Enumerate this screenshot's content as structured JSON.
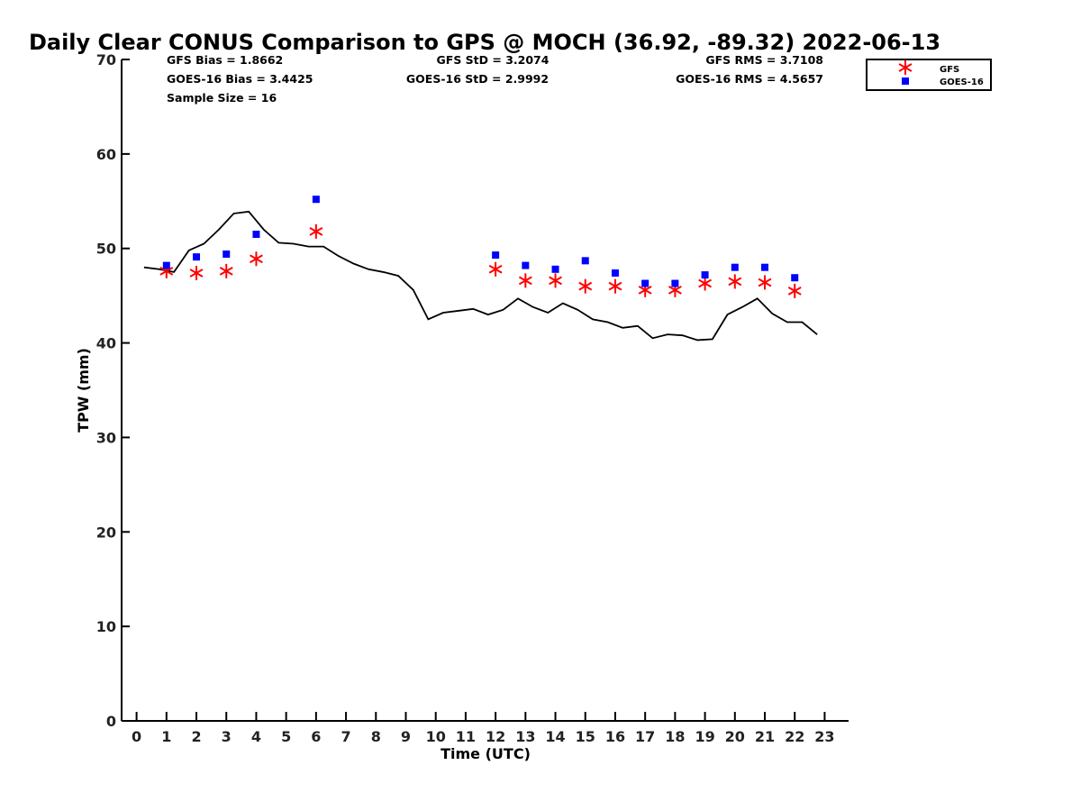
{
  "chart_data": {
    "type": "line",
    "title": "Daily Clear CONUS Comparison to GPS @ MOCH (36.92, -89.32) 2022-06-13",
    "xlabel": "Time (UTC)",
    "ylabel": "TPW (mm)",
    "xlim": [
      -0.5,
      23.8
    ],
    "ylim": [
      0,
      70
    ],
    "xticks": [
      "0",
      "1",
      "2",
      "3",
      "4",
      "5",
      "6",
      "7",
      "8",
      "9",
      "10",
      "11",
      "12",
      "13",
      "14",
      "15",
      "16",
      "17",
      "18",
      "19",
      "20",
      "21",
      "22",
      "23"
    ],
    "yticks": [
      "0",
      "10",
      "20",
      "30",
      "40",
      "50",
      "60",
      "70"
    ],
    "grid": false,
    "legend_position": "top-right",
    "stats": {
      "gfs_bias": "GFS Bias = 1.8662",
      "goes_bias": "GOES-16 Bias = 3.4425",
      "sample_size": "Sample Size = 16",
      "gfs_std": "GFS StD = 3.2074",
      "goes_std": "GOES-16 StD = 2.9992",
      "gfs_rms": "GFS RMS = 3.7108",
      "goes_rms": "GOES-16 RMS = 4.5657"
    },
    "series": [
      {
        "kind": "line",
        "color": "#000000",
        "x": [
          0.25,
          0.75,
          1.25,
          1.75,
          2.25,
          2.75,
          3.25,
          3.75,
          4.25,
          4.75,
          5.25,
          5.75,
          6.25,
          6.75,
          7.25,
          7.75,
          8.25,
          8.75,
          9.25,
          9.75,
          10.25,
          10.75,
          11.25,
          11.75,
          12.25,
          12.75,
          13.25,
          13.75,
          14.25,
          14.75,
          15.25,
          15.75,
          16.25,
          16.75,
          17.25,
          17.75,
          18.25,
          18.75,
          19.25,
          19.75,
          20.25,
          20.75,
          21.25,
          21.75,
          22.25,
          22.75
        ],
        "y": [
          48.0,
          47.8,
          47.5,
          49.8,
          50.5,
          52.0,
          53.7,
          53.9,
          52.0,
          50.6,
          50.5,
          50.2,
          50.2,
          49.2,
          48.4,
          47.8,
          47.5,
          47.1,
          45.6,
          42.5,
          43.2,
          43.4,
          43.6,
          43.0,
          43.5,
          44.7,
          43.8,
          43.2,
          44.2,
          43.5,
          42.5,
          42.2,
          41.6,
          41.8,
          40.5,
          40.9,
          40.8,
          40.3,
          40.4,
          43.0,
          43.8,
          44.7,
          43.1,
          42.2,
          42.2,
          40.9
        ]
      },
      {
        "name": "GFS",
        "kind": "asterisk",
        "color": "#ff0000",
        "x": [
          1,
          2,
          3,
          4,
          6,
          12,
          13,
          14,
          15,
          16,
          17,
          18,
          19,
          20,
          21,
          22
        ],
        "y": [
          47.6,
          47.4,
          47.6,
          48.9,
          51.8,
          47.8,
          46.6,
          46.6,
          46.0,
          46.0,
          45.6,
          45.6,
          46.3,
          46.5,
          46.4,
          45.5
        ]
      },
      {
        "name": "GOES-16",
        "kind": "square",
        "color": "#0000ff",
        "x": [
          1,
          2,
          3,
          4,
          6,
          12,
          13,
          14,
          15,
          16,
          17,
          18,
          19,
          20,
          21,
          22
        ],
        "y": [
          48.2,
          49.1,
          49.4,
          51.5,
          55.2,
          49.3,
          48.2,
          47.8,
          48.7,
          47.4,
          46.3,
          46.3,
          47.2,
          48.0,
          48.0,
          46.9
        ]
      }
    ]
  }
}
